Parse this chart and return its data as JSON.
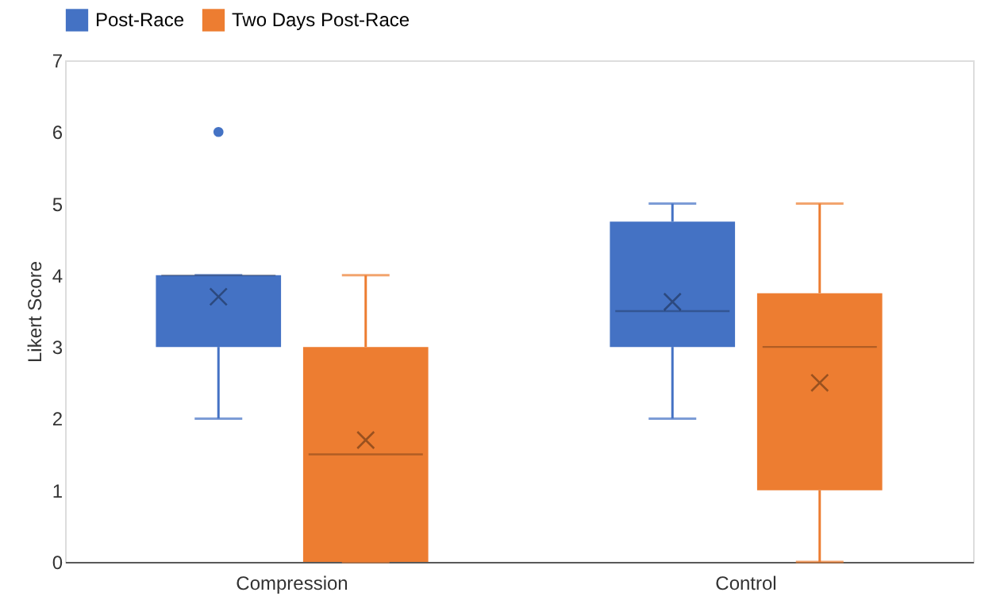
{
  "chart_data": {
    "type": "box",
    "ylabel": "Likert Score",
    "categories": [
      "Compression",
      "Control"
    ],
    "ylim": [
      0,
      7
    ],
    "yticks": [
      0,
      1,
      2,
      3,
      4,
      5,
      6,
      7
    ],
    "legend": "top",
    "series": [
      {
        "name": "Post-Race",
        "color": "#4472c4",
        "boxes": [
          {
            "low": 2,
            "q1": 3,
            "median": 4,
            "q3": 4,
            "high": 4,
            "mean": 3.7,
            "outliers": [
              6
            ]
          },
          {
            "low": 2,
            "q1": 3,
            "median": 3.5,
            "q3": 4.75,
            "high": 5,
            "mean": 3.63
          }
        ]
      },
      {
        "name": "Two Days Post-Race",
        "color": "#ed7d31",
        "boxes": [
          {
            "low": 0,
            "q1": 0,
            "median": 1.5,
            "q3": 3,
            "high": 4,
            "mean": 1.7
          },
          {
            "low": 0,
            "q1": 1,
            "median": 3,
            "q3": 3.75,
            "high": 5,
            "mean": 2.5
          }
        ]
      }
    ]
  }
}
